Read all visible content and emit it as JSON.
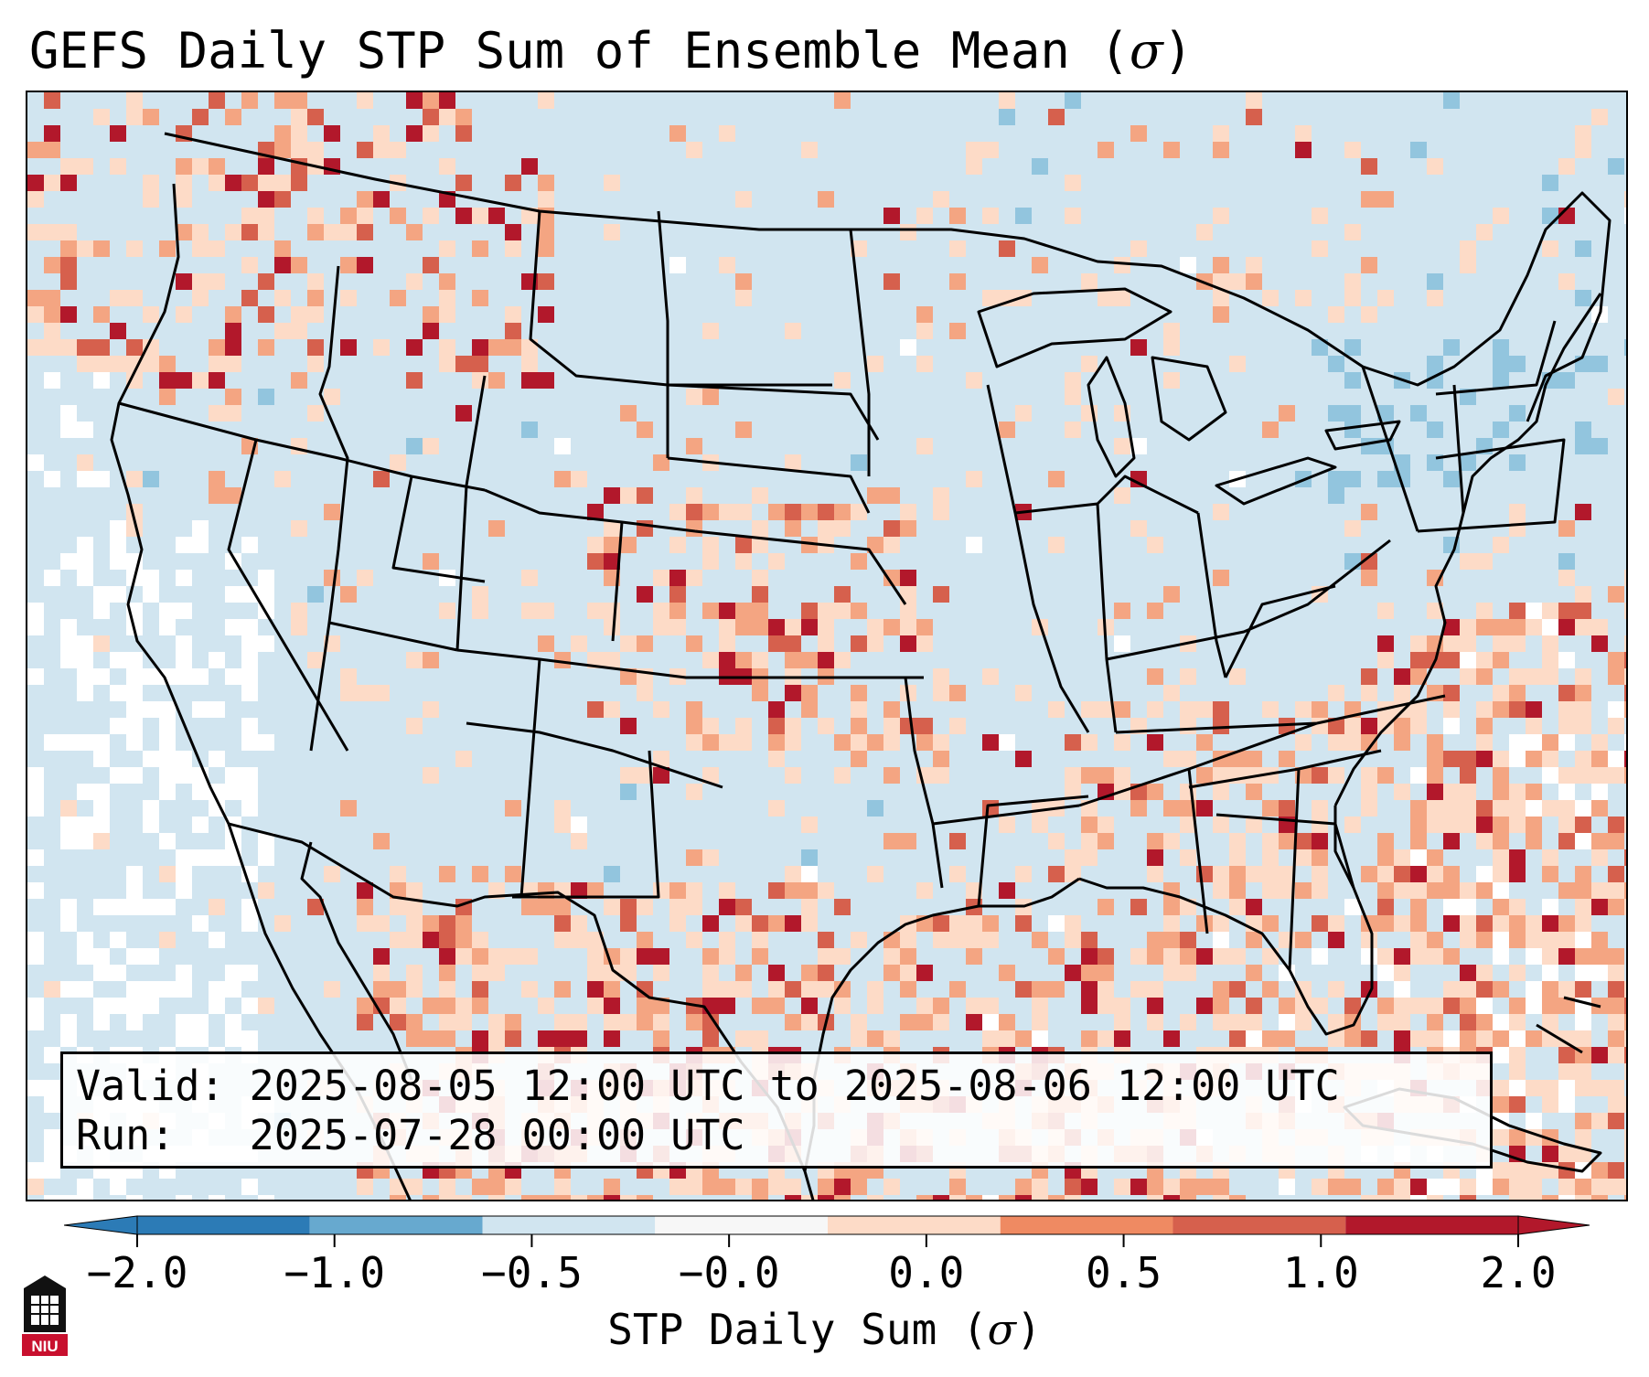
{
  "title": "GEFS Daily STP Sum of Ensemble Mean (σ)",
  "title_main": "GEFS Daily STP Sum of Ensemble Mean (",
  "title_sigma": "σ",
  "title_close": ")",
  "info": {
    "valid_label": "Valid:",
    "valid_value": "2025-08-05 12:00 UTC to 2025-08-06 12:00 UTC",
    "run_label": "Run:",
    "run_value": "2025-07-28 00:00 UTC"
  },
  "colorbar": {
    "label_main": "STP Daily Sum (",
    "label_sigma": "σ",
    "label_close": ")",
    "ticks": [
      "−2.0",
      "−1.0",
      "−0.5",
      "−0.0",
      "0.0",
      "0.5",
      "1.0",
      "2.0"
    ],
    "colors": [
      "#2c7bb6",
      "#67a9cf",
      "#d1e5f0",
      "#f7f7f7",
      "#fddbc7",
      "#ef8a62",
      "#d6604d",
      "#b2182b"
    ]
  },
  "logo_text": "NIU",
  "colors": {
    "ocean_neutral": "#d1e5f0",
    "white": "#ffffff",
    "light_pos": "#fddbc7",
    "mid_pos": "#f4a582",
    "high_pos": "#d6604d",
    "max_pos": "#b2182b",
    "light_neg": "#92c5de",
    "border": "#000000"
  }
}
